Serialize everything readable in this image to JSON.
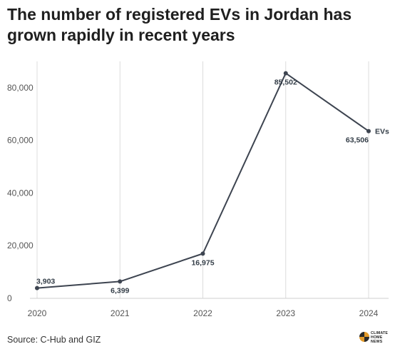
{
  "chart_data": {
    "type": "line",
    "title": "The number of registered EVs in Jordan has grown rapidly in recent years",
    "xlabel": "",
    "ylabel": "",
    "x": [
      "2020",
      "2021",
      "2022",
      "2023",
      "2024"
    ],
    "series": [
      {
        "name": "EVs",
        "values": [
          3903,
          6399,
          16975,
          85502,
          63506
        ],
        "labels": [
          "3,903",
          "6,399",
          "16,975",
          "85,502",
          "63,506"
        ],
        "color": "#3d4450"
      }
    ],
    "ylim": [
      0,
      90000
    ],
    "yticks": [
      0,
      20000,
      40000,
      60000,
      80000
    ],
    "ytick_labels": [
      "0",
      "20,000",
      "40,000",
      "60,000",
      "80,000"
    ],
    "grid": "vertical",
    "legend": "end-of-line label"
  },
  "source": "Source: C-Hub and GIZ",
  "logo": {
    "lines": [
      "CLIMATE",
      "HOME",
      "NEWS"
    ],
    "colors": [
      "#e39b2b",
      "#2a2a2a"
    ]
  }
}
